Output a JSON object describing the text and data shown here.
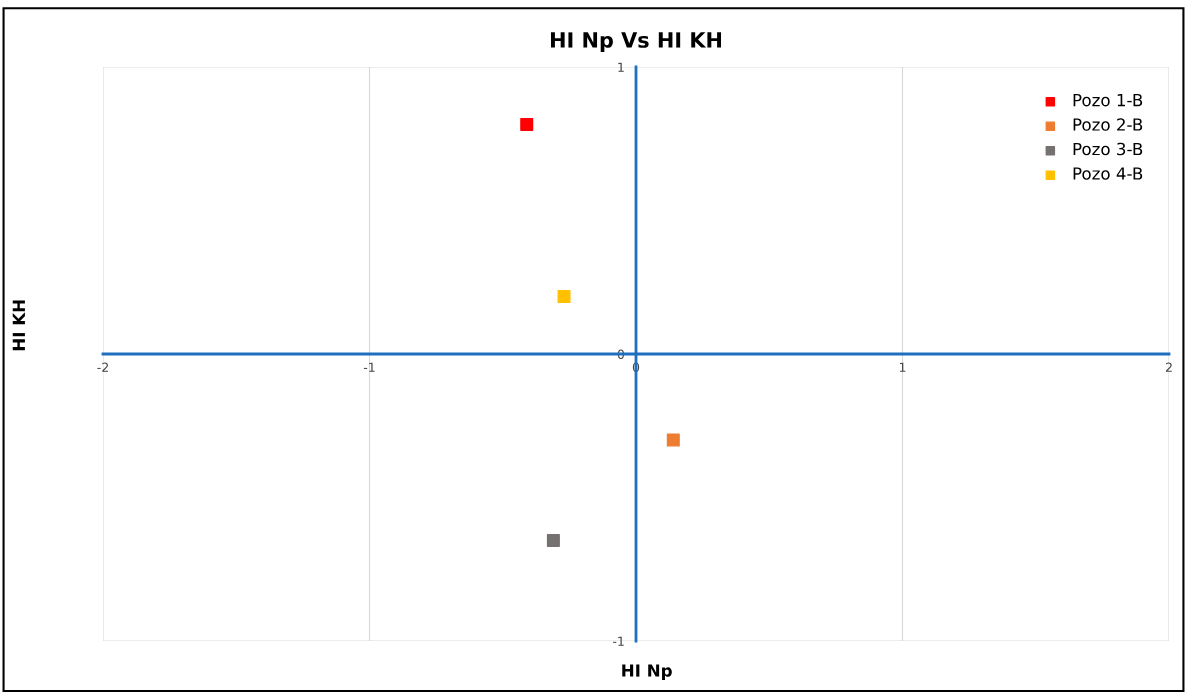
{
  "chart_data": {
    "type": "scatter",
    "title": "HI Np Vs HI KH",
    "xlabel": "HI Np",
    "ylabel": "HI KH",
    "xlim": [
      -2,
      2
    ],
    "xticks": [
      -2,
      -1,
      0,
      1,
      2
    ],
    "ylim": [
      -1,
      1
    ],
    "yticks": [
      -1,
      0,
      1
    ],
    "grid": true,
    "legend": "top right",
    "marker": "square",
    "series": [
      {
        "name": "Pozo 1-B",
        "color": "#ff0000",
        "x": [
          -0.41
        ],
        "values": [
          0.8
        ]
      },
      {
        "name": "Pozo 2-B",
        "color": "#ed7d31",
        "x": [
          0.14
        ],
        "values": [
          -0.3
        ]
      },
      {
        "name": "Pozo 3-B",
        "color": "#767171",
        "x": [
          -0.31
        ],
        "values": [
          -0.65
        ]
      },
      {
        "name": "Pozo 4-B",
        "color": "#ffc000",
        "x": [
          -0.27
        ],
        "values": [
          0.2
        ]
      }
    ]
  }
}
